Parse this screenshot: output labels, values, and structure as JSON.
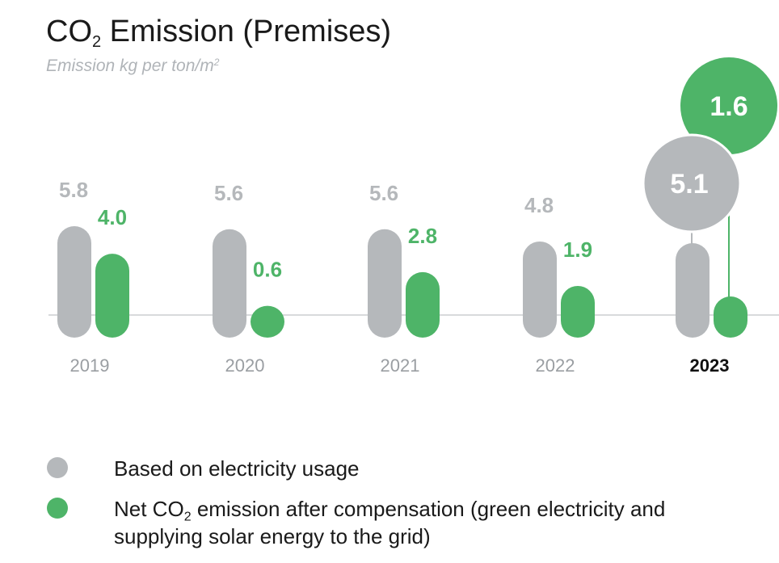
{
  "header": {
    "title_prefix": "CO",
    "title_sub": "2",
    "title_rest": " Emission (Premises)",
    "subtitle_main": "Emission kg per ton/m",
    "subtitle_sup": "2"
  },
  "colors": {
    "gray": "#b5b8bb",
    "green": "#4eb468",
    "year_label": "#9a9ea2",
    "highlight_year": "#111111",
    "axis": "#d8dadc"
  },
  "chart_data": {
    "type": "bar",
    "title": "CO2 Emission (Premises)",
    "subtitle": "Emission kg per ton/m2",
    "categories": [
      "2019",
      "2020",
      "2021",
      "2022",
      "2023"
    ],
    "highlight_category": "2023",
    "series": [
      {
        "name": "Based on electricity usage",
        "color": "#b5b8bb",
        "values": [
          5.8,
          5.6,
          5.6,
          4.8,
          5.1
        ]
      },
      {
        "name": "Net CO2 emission after compensation (green electricity and supplying solar energy to the grid)",
        "color": "#4eb468",
        "values": [
          4.0,
          0.6,
          2.8,
          1.9,
          1.6
        ]
      }
    ],
    "data_labels": {
      "gray": [
        "5.8",
        "5.6",
        "5.6",
        "4.8",
        "5.1"
      ],
      "green": [
        "4.0",
        "0.6",
        "2.8",
        "1.9",
        "1.6"
      ]
    },
    "xlabel": "",
    "ylabel": "",
    "grid": false,
    "legend_position": "bottom-left"
  },
  "legend": {
    "items": [
      {
        "text": "Based on electricity usage",
        "color": "#b5b8bb"
      },
      {
        "text_prefix": "Net CO",
        "text_sub": "2",
        "text_rest": " emission after compensation (green electricity and supplying solar energy to the grid)",
        "color": "#4eb468"
      }
    ]
  }
}
